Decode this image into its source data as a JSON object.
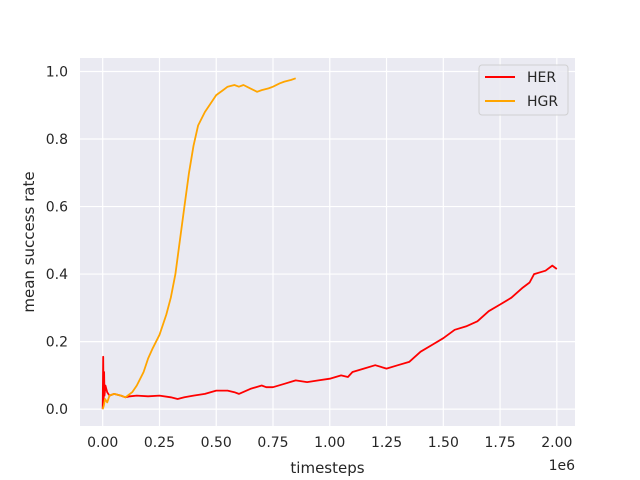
{
  "chart_data": {
    "type": "line",
    "xlabel": "timesteps",
    "ylabel": "mean success rate",
    "x_offset_label": "1e6",
    "xlim": [
      -0.1,
      2.08
    ],
    "ylim": [
      -0.05,
      1.04
    ],
    "x_ticks": [
      {
        "value": 0.0,
        "label": "0.00"
      },
      {
        "value": 0.25,
        "label": "0.25"
      },
      {
        "value": 0.5,
        "label": "0.50"
      },
      {
        "value": 0.75,
        "label": "0.75"
      },
      {
        "value": 1.0,
        "label": "1.00"
      },
      {
        "value": 1.25,
        "label": "1.25"
      },
      {
        "value": 1.5,
        "label": "1.50"
      },
      {
        "value": 1.75,
        "label": "1.75"
      },
      {
        "value": 2.0,
        "label": "2.00"
      }
    ],
    "y_ticks": [
      {
        "value": 0.0,
        "label": "0.0"
      },
      {
        "value": 0.2,
        "label": "0.2"
      },
      {
        "value": 0.4,
        "label": "0.4"
      },
      {
        "value": 0.6,
        "label": "0.6"
      },
      {
        "value": 0.8,
        "label": "0.8"
      },
      {
        "value": 1.0,
        "label": "1.0"
      }
    ],
    "grid": true,
    "legend_position": "top-right",
    "background": "#eaeaf2",
    "series": [
      {
        "name": "HER",
        "color": "#ff0000",
        "x": [
          0.0,
          0.002,
          0.004,
          0.006,
          0.008,
          0.012,
          0.02,
          0.03,
          0.05,
          0.08,
          0.1,
          0.12,
          0.15,
          0.2,
          0.25,
          0.3,
          0.33,
          0.36,
          0.4,
          0.45,
          0.5,
          0.55,
          0.58,
          0.6,
          0.65,
          0.7,
          0.72,
          0.75,
          0.8,
          0.85,
          0.9,
          0.95,
          1.0,
          1.05,
          1.08,
          1.1,
          1.15,
          1.2,
          1.25,
          1.3,
          1.35,
          1.4,
          1.45,
          1.5,
          1.55,
          1.6,
          1.65,
          1.7,
          1.75,
          1.8,
          1.85,
          1.88,
          1.9,
          1.95,
          1.98,
          2.0
        ],
        "y": [
          0.0,
          0.155,
          0.01,
          0.11,
          0.04,
          0.07,
          0.05,
          0.04,
          0.045,
          0.04,
          0.035,
          0.038,
          0.04,
          0.038,
          0.04,
          0.035,
          0.03,
          0.035,
          0.04,
          0.045,
          0.055,
          0.055,
          0.05,
          0.045,
          0.06,
          0.07,
          0.065,
          0.065,
          0.075,
          0.085,
          0.08,
          0.085,
          0.09,
          0.1,
          0.095,
          0.11,
          0.12,
          0.13,
          0.12,
          0.13,
          0.14,
          0.17,
          0.19,
          0.21,
          0.235,
          0.245,
          0.26,
          0.29,
          0.31,
          0.33,
          0.36,
          0.375,
          0.4,
          0.41,
          0.425,
          0.415
        ]
      },
      {
        "name": "HGR",
        "color": "#ffa500",
        "x": [
          0.0,
          0.005,
          0.01,
          0.02,
          0.03,
          0.05,
          0.08,
          0.1,
          0.13,
          0.15,
          0.18,
          0.2,
          0.22,
          0.25,
          0.28,
          0.3,
          0.32,
          0.34,
          0.36,
          0.38,
          0.4,
          0.42,
          0.45,
          0.48,
          0.5,
          0.53,
          0.55,
          0.58,
          0.6,
          0.62,
          0.65,
          0.68,
          0.7,
          0.73,
          0.75,
          0.78,
          0.8,
          0.83,
          0.85
        ],
        "y": [
          0.0,
          0.01,
          0.03,
          0.02,
          0.04,
          0.045,
          0.04,
          0.035,
          0.05,
          0.07,
          0.11,
          0.15,
          0.18,
          0.22,
          0.28,
          0.33,
          0.4,
          0.5,
          0.6,
          0.7,
          0.78,
          0.84,
          0.88,
          0.91,
          0.93,
          0.945,
          0.955,
          0.96,
          0.955,
          0.96,
          0.95,
          0.94,
          0.945,
          0.95,
          0.955,
          0.965,
          0.97,
          0.975,
          0.98
        ]
      }
    ]
  }
}
